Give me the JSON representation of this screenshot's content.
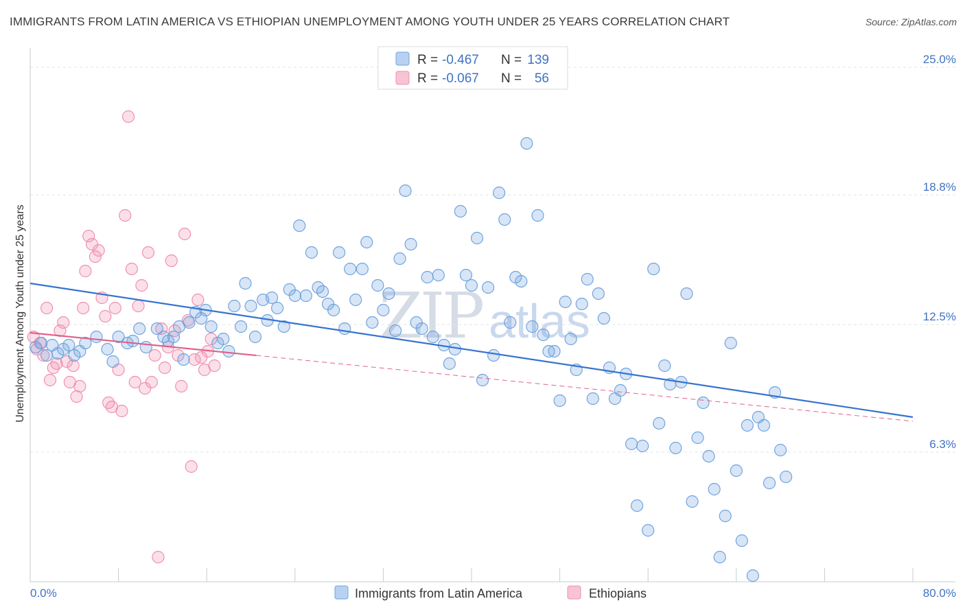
{
  "header": {
    "title": "IMMIGRANTS FROM LATIN AMERICA VS ETHIOPIAN UNEMPLOYMENT AMONG YOUTH UNDER 25 YEARS CORRELATION CHART",
    "source": "Source: ZipAtlas.com"
  },
  "watermark": {
    "part1": "ZIP",
    "part2": "atlas"
  },
  "legend": {
    "r_label": "R =",
    "n_label": "N =",
    "rows": [
      {
        "r": "-0.467",
        "n": "139",
        "color": "#6fa3dd"
      },
      {
        "r": "-0.067",
        "n": "56",
        "color": "#ef8fb0"
      }
    ]
  },
  "bottom_legend": {
    "items": [
      {
        "label": "Immigrants from Latin America"
      },
      {
        "label": "Ethiopians"
      }
    ]
  },
  "colors": {
    "blue_fill": "rgba(111,163,221,0.28)",
    "blue_stroke": "#6fa3dd",
    "blue_line": "#3573cf",
    "pink_fill": "rgba(239,143,176,0.28)",
    "pink_stroke": "#ef8fb0",
    "pink_line": "#e0608a",
    "grid": "#dfe3ea",
    "axis_text": "#3f72c4"
  },
  "chart_data": {
    "type": "scatter",
    "title": "IMMIGRANTS FROM LATIN AMERICA VS ETHIOPIAN UNEMPLOYMENT AMONG YOUTH UNDER 25 YEARS CORRELATION CHART",
    "xlabel": "",
    "ylabel": "Unemployment Among Youth under 25 years",
    "xlim": [
      0,
      80
    ],
    "ylim": [
      0,
      25.7
    ],
    "x_tick_labels": [
      "0.0%",
      "80.0%"
    ],
    "y_ticks": [
      6.3,
      12.5,
      18.8,
      25.0
    ],
    "y_tick_labels": [
      "6.3%",
      "12.5%",
      "18.8%",
      "25.0%"
    ],
    "grid": true,
    "legend_position": "top-center",
    "series": [
      {
        "name": "Immigrants from Latin America",
        "r": -0.467,
        "n": 139,
        "trend": {
          "x": [
            0,
            80
          ],
          "y": [
            14.5,
            8.0
          ]
        },
        "points": [
          [
            0.5,
            11.4
          ],
          [
            1.0,
            11.6
          ],
          [
            1.5,
            11.0
          ],
          [
            2.0,
            11.5
          ],
          [
            2.5,
            11.1
          ],
          [
            3.0,
            11.3
          ],
          [
            3.5,
            11.5
          ],
          [
            4.0,
            11.0
          ],
          [
            4.5,
            11.2
          ],
          [
            5.0,
            11.6
          ],
          [
            6.0,
            11.9
          ],
          [
            7.0,
            11.3
          ],
          [
            7.5,
            10.7
          ],
          [
            8.0,
            11.9
          ],
          [
            8.8,
            11.6
          ],
          [
            9.3,
            11.7
          ],
          [
            9.9,
            12.3
          ],
          [
            10.5,
            11.4
          ],
          [
            11.5,
            12.3
          ],
          [
            12.1,
            11.9
          ],
          [
            12.5,
            11.7
          ],
          [
            13.0,
            11.9
          ],
          [
            13.5,
            12.4
          ],
          [
            13.9,
            10.8
          ],
          [
            14.4,
            12.6
          ],
          [
            15.0,
            13.1
          ],
          [
            15.5,
            12.8
          ],
          [
            15.9,
            13.2
          ],
          [
            16.4,
            12.4
          ],
          [
            17.0,
            11.6
          ],
          [
            17.5,
            11.8
          ],
          [
            18.0,
            11.2
          ],
          [
            18.5,
            13.4
          ],
          [
            19.1,
            12.4
          ],
          [
            19.5,
            14.5
          ],
          [
            20.0,
            13.4
          ],
          [
            20.4,
            11.9
          ],
          [
            21.1,
            13.7
          ],
          [
            21.5,
            12.7
          ],
          [
            21.9,
            13.8
          ],
          [
            22.4,
            13.3
          ],
          [
            23.0,
            12.4
          ],
          [
            23.5,
            14.2
          ],
          [
            24.0,
            13.9
          ],
          [
            24.4,
            17.3
          ],
          [
            25.0,
            13.9
          ],
          [
            25.5,
            16.0
          ],
          [
            26.1,
            14.3
          ],
          [
            26.5,
            14.1
          ],
          [
            27.0,
            13.5
          ],
          [
            27.5,
            13.2
          ],
          [
            28.0,
            16.0
          ],
          [
            28.5,
            12.3
          ],
          [
            29.0,
            15.2
          ],
          [
            29.5,
            13.7
          ],
          [
            30.1,
            15.2
          ],
          [
            30.5,
            16.5
          ],
          [
            31.0,
            12.6
          ],
          [
            31.5,
            14.4
          ],
          [
            32.0,
            13.2
          ],
          [
            32.5,
            14.0
          ],
          [
            33.1,
            12.2
          ],
          [
            33.5,
            15.7
          ],
          [
            34.0,
            19.0
          ],
          [
            34.5,
            16.4
          ],
          [
            35.0,
            12.6
          ],
          [
            35.5,
            12.3
          ],
          [
            36.0,
            14.8
          ],
          [
            36.5,
            11.9
          ],
          [
            37.0,
            14.9
          ],
          [
            37.5,
            11.5
          ],
          [
            38.0,
            10.6
          ],
          [
            38.5,
            11.3
          ],
          [
            39.0,
            18.0
          ],
          [
            39.5,
            14.9
          ],
          [
            40.0,
            14.4
          ],
          [
            40.5,
            16.7
          ],
          [
            41.0,
            9.8
          ],
          [
            41.5,
            14.3
          ],
          [
            42.0,
            11.0
          ],
          [
            42.5,
            18.9
          ],
          [
            43.0,
            17.6
          ],
          [
            43.5,
            12.6
          ],
          [
            44.0,
            14.8
          ],
          [
            44.5,
            14.6
          ],
          [
            45.0,
            21.3
          ],
          [
            45.5,
            12.4
          ],
          [
            46.0,
            17.8
          ],
          [
            46.5,
            12.0
          ],
          [
            47.0,
            11.2
          ],
          [
            47.5,
            11.2
          ],
          [
            48.0,
            8.8
          ],
          [
            48.5,
            13.6
          ],
          [
            49.0,
            11.8
          ],
          [
            49.5,
            10.3
          ],
          [
            50.0,
            13.5
          ],
          [
            50.5,
            14.7
          ],
          [
            51.0,
            8.9
          ],
          [
            51.5,
            14.0
          ],
          [
            52.0,
            12.8
          ],
          [
            52.5,
            10.4
          ],
          [
            53.0,
            8.9
          ],
          [
            53.5,
            9.3
          ],
          [
            54.0,
            10.1
          ],
          [
            54.5,
            6.7
          ],
          [
            55.0,
            3.7
          ],
          [
            55.5,
            6.6
          ],
          [
            56.0,
            2.5
          ],
          [
            56.5,
            15.2
          ],
          [
            57.0,
            7.7
          ],
          [
            57.5,
            10.5
          ],
          [
            58.0,
            9.6
          ],
          [
            58.5,
            6.5
          ],
          [
            59.0,
            9.7
          ],
          [
            59.5,
            14.0
          ],
          [
            60.0,
            3.9
          ],
          [
            60.5,
            7.0
          ],
          [
            61.0,
            8.7
          ],
          [
            61.5,
            6.1
          ],
          [
            62.0,
            4.5
          ],
          [
            62.5,
            1.2
          ],
          [
            63.0,
            3.2
          ],
          [
            63.5,
            11.6
          ],
          [
            64.0,
            5.4
          ],
          [
            64.5,
            2.0
          ],
          [
            65.0,
            7.6
          ],
          [
            65.5,
            0.3
          ],
          [
            66.0,
            8.0
          ],
          [
            66.5,
            7.6
          ],
          [
            67.0,
            4.8
          ],
          [
            67.5,
            9.2
          ],
          [
            68.0,
            6.4
          ],
          [
            68.5,
            5.1
          ]
        ]
      },
      {
        "name": "Ethiopians",
        "r": -0.067,
        "n": 56,
        "trend": {
          "x": [
            0,
            80
          ],
          "y": [
            12.1,
            7.8
          ]
        },
        "points": [
          [
            0.3,
            11.9
          ],
          [
            0.6,
            11.3
          ],
          [
            0.9,
            11.6
          ],
          [
            1.2,
            11.0
          ],
          [
            1.5,
            13.3
          ],
          [
            1.8,
            9.8
          ],
          [
            2.1,
            10.4
          ],
          [
            2.4,
            10.6
          ],
          [
            2.7,
            12.2
          ],
          [
            3.0,
            12.6
          ],
          [
            3.3,
            10.7
          ],
          [
            3.6,
            9.7
          ],
          [
            3.9,
            10.5
          ],
          [
            4.2,
            9.0
          ],
          [
            4.5,
            9.5
          ],
          [
            4.8,
            13.3
          ],
          [
            5.0,
            15.1
          ],
          [
            5.3,
            16.8
          ],
          [
            5.6,
            16.4
          ],
          [
            5.9,
            15.8
          ],
          [
            6.2,
            16.1
          ],
          [
            6.5,
            13.8
          ],
          [
            6.8,
            12.9
          ],
          [
            7.1,
            8.7
          ],
          [
            7.4,
            8.5
          ],
          [
            7.7,
            13.3
          ],
          [
            8.0,
            10.3
          ],
          [
            8.3,
            8.3
          ],
          [
            8.6,
            17.8
          ],
          [
            8.9,
            22.6
          ],
          [
            9.2,
            15.2
          ],
          [
            9.5,
            9.7
          ],
          [
            9.8,
            13.4
          ],
          [
            10.1,
            14.4
          ],
          [
            10.4,
            9.4
          ],
          [
            10.7,
            16.0
          ],
          [
            11.0,
            9.7
          ],
          [
            11.3,
            11.0
          ],
          [
            11.6,
            1.2
          ],
          [
            11.9,
            12.3
          ],
          [
            12.2,
            10.4
          ],
          [
            12.5,
            11.4
          ],
          [
            12.8,
            15.6
          ],
          [
            13.1,
            12.2
          ],
          [
            13.4,
            11.0
          ],
          [
            13.7,
            9.5
          ],
          [
            14.0,
            16.9
          ],
          [
            14.3,
            12.7
          ],
          [
            14.6,
            5.6
          ],
          [
            14.9,
            10.8
          ],
          [
            15.2,
            13.7
          ],
          [
            15.5,
            10.9
          ],
          [
            15.8,
            10.3
          ],
          [
            16.1,
            11.2
          ],
          [
            16.4,
            11.8
          ],
          [
            16.7,
            10.5
          ]
        ]
      }
    ]
  }
}
